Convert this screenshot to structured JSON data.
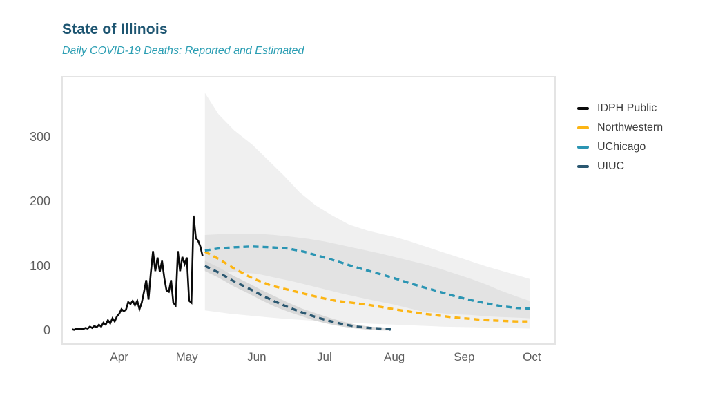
{
  "header": {
    "title": "State of Illinois",
    "subtitle": "Daily COVID-19 Deaths: Reported and Estimated",
    "title_color": "#1d5571",
    "subtitle_color": "#2b9eb3"
  },
  "legend": {
    "items": [
      {
        "label": "IDPH Public",
        "color": "#0a0a0a"
      },
      {
        "label": "Northwestern",
        "color": "#fcb514"
      },
      {
        "label": "UChicago",
        "color": "#2b95b3"
      },
      {
        "label": "UIUC",
        "color": "#2b5871"
      }
    ]
  },
  "chart_data": {
    "type": "line",
    "title": "State of Illinois",
    "subtitle": "Daily COVID-19 Deaths: Reported and Estimated",
    "xlabel": "",
    "ylabel": "",
    "x_unit": "days since 2020-03-01",
    "x_domain": [
      6,
      224
    ],
    "y_domain": [
      -20,
      392
    ],
    "grid": false,
    "legend_position": "right",
    "x_ticks": [
      {
        "label": "Apr",
        "day": 31
      },
      {
        "label": "May",
        "day": 61
      },
      {
        "label": "Jun",
        "day": 92
      },
      {
        "label": "Jul",
        "day": 122
      },
      {
        "label": "Aug",
        "day": 153
      },
      {
        "label": "Sep",
        "day": 184
      },
      {
        "label": "Oct",
        "day": 214
      }
    ],
    "y_ticks": [
      0,
      100,
      200,
      300
    ],
    "bands": [
      {
        "name": "forecast-outer-interval",
        "color": "#f0f0f0",
        "upper": [
          [
            69,
            368
          ],
          [
            75,
            335
          ],
          [
            82,
            310
          ],
          [
            90,
            288
          ],
          [
            97,
            264
          ],
          [
            104,
            240
          ],
          [
            111,
            214
          ],
          [
            118,
            194
          ],
          [
            125,
            179
          ],
          [
            133,
            164
          ],
          [
            141,
            155
          ],
          [
            148,
            149
          ],
          [
            153,
            145
          ],
          [
            160,
            138
          ],
          [
            166,
            131
          ],
          [
            173,
            123
          ],
          [
            180,
            115
          ],
          [
            187,
            107
          ],
          [
            194,
            99
          ],
          [
            201,
            92
          ],
          [
            207,
            86
          ],
          [
            213,
            80
          ]
        ],
        "lower": [
          [
            69,
            31
          ],
          [
            80,
            26
          ],
          [
            92,
            22
          ],
          [
            105,
            18
          ],
          [
            118,
            15
          ],
          [
            133,
            12
          ],
          [
            146,
            10
          ],
          [
            160,
            8
          ],
          [
            174,
            6
          ],
          [
            188,
            5
          ],
          [
            200,
            4
          ],
          [
            213,
            3
          ]
        ]
      },
      {
        "name": "uchicago-inner-interval",
        "color": "#e3e3e3",
        "upper": [
          [
            69,
            148
          ],
          [
            80,
            150
          ],
          [
            92,
            150
          ],
          [
            100,
            148
          ],
          [
            108,
            145
          ],
          [
            115,
            142
          ],
          [
            122,
            138
          ],
          [
            130,
            132
          ],
          [
            138,
            126
          ],
          [
            146,
            120
          ],
          [
            153,
            114
          ],
          [
            160,
            108
          ],
          [
            166,
            103
          ],
          [
            173,
            96
          ],
          [
            180,
            88
          ],
          [
            187,
            80
          ],
          [
            194,
            71
          ],
          [
            200,
            62
          ],
          [
            207,
            53
          ],
          [
            213,
            46
          ]
        ],
        "lower": [
          [
            69,
            93
          ],
          [
            80,
            91
          ],
          [
            92,
            88
          ],
          [
            100,
            82
          ],
          [
            108,
            76
          ],
          [
            115,
            70
          ],
          [
            122,
            64
          ],
          [
            130,
            57
          ],
          [
            138,
            51
          ],
          [
            146,
            45
          ],
          [
            153,
            40
          ],
          [
            160,
            34
          ],
          [
            166,
            29
          ],
          [
            173,
            27
          ],
          [
            180,
            25
          ],
          [
            187,
            24
          ],
          [
            194,
            22
          ],
          [
            200,
            21
          ],
          [
            207,
            20
          ],
          [
            213,
            19
          ]
        ]
      },
      {
        "name": "uiuc-interval",
        "color": "#d8d8d8",
        "upper": [
          [
            69,
            108
          ],
          [
            75,
            98
          ],
          [
            82,
            84
          ],
          [
            88,
            74
          ],
          [
            94,
            63
          ],
          [
            100,
            53
          ],
          [
            106,
            43
          ],
          [
            112,
            34
          ],
          [
            118,
            27
          ],
          [
            124,
            20
          ],
          [
            130,
            14
          ],
          [
            136,
            9
          ],
          [
            142,
            6
          ],
          [
            147,
            5
          ],
          [
            151,
            4
          ]
        ],
        "lower": [
          [
            69,
            92
          ],
          [
            75,
            82
          ],
          [
            82,
            68
          ],
          [
            88,
            58
          ],
          [
            94,
            47
          ],
          [
            100,
            37
          ],
          [
            106,
            29
          ],
          [
            112,
            22
          ],
          [
            118,
            15
          ],
          [
            124,
            10
          ],
          [
            130,
            6
          ],
          [
            136,
            3
          ],
          [
            142,
            1
          ],
          [
            147,
            0
          ],
          [
            151,
            0
          ]
        ]
      }
    ],
    "series": [
      {
        "name": "Northwestern",
        "color": "#fcb514",
        "style": "dashed",
        "width": 3.4,
        "points": [
          [
            69,
            122
          ],
          [
            75,
            111
          ],
          [
            82,
            96
          ],
          [
            90,
            81
          ],
          [
            98,
            70
          ],
          [
            106,
            63
          ],
          [
            113,
            57
          ],
          [
            120,
            51
          ],
          [
            127,
            46
          ],
          [
            134,
            43
          ],
          [
            141,
            40
          ],
          [
            148,
            36
          ],
          [
            153,
            33
          ],
          [
            160,
            29
          ],
          [
            166,
            26
          ],
          [
            173,
            23
          ],
          [
            180,
            20
          ],
          [
            187,
            18
          ],
          [
            194,
            16
          ],
          [
            200,
            15
          ],
          [
            207,
            14
          ],
          [
            213,
            14
          ]
        ]
      },
      {
        "name": "UChicago",
        "color": "#2b95b3",
        "style": "dashed",
        "width": 3.4,
        "points": [
          [
            69,
            124
          ],
          [
            75,
            127
          ],
          [
            82,
            129
          ],
          [
            90,
            130
          ],
          [
            98,
            129
          ],
          [
            106,
            127
          ],
          [
            113,
            122
          ],
          [
            120,
            115
          ],
          [
            127,
            108
          ],
          [
            134,
            100
          ],
          [
            141,
            93
          ],
          [
            148,
            86
          ],
          [
            153,
            81
          ],
          [
            160,
            73
          ],
          [
            166,
            67
          ],
          [
            173,
            60
          ],
          [
            180,
            53
          ],
          [
            187,
            47
          ],
          [
            194,
            42
          ],
          [
            200,
            38
          ],
          [
            207,
            35
          ],
          [
            213,
            34
          ]
        ]
      },
      {
        "name": "UIUC",
        "color": "#2b5871",
        "style": "dashed",
        "width": 3.4,
        "end_dot": true,
        "points": [
          [
            69,
            100
          ],
          [
            75,
            90
          ],
          [
            82,
            76
          ],
          [
            88,
            66
          ],
          [
            94,
            55
          ],
          [
            100,
            45
          ],
          [
            106,
            36
          ],
          [
            112,
            28
          ],
          [
            118,
            21
          ],
          [
            124,
            15
          ],
          [
            130,
            10
          ],
          [
            136,
            6
          ],
          [
            142,
            4
          ],
          [
            147,
            3
          ],
          [
            151,
            2
          ]
        ]
      },
      {
        "name": "IDPH Public",
        "color": "#0a0a0a",
        "style": "solid",
        "width": 2.6,
        "points": [
          [
            10,
            2
          ],
          [
            11,
            1
          ],
          [
            12,
            3
          ],
          [
            13,
            2
          ],
          [
            14,
            3
          ],
          [
            15,
            2
          ],
          [
            16,
            4
          ],
          [
            17,
            3
          ],
          [
            18,
            6
          ],
          [
            19,
            4
          ],
          [
            20,
            7
          ],
          [
            21,
            5
          ],
          [
            22,
            9
          ],
          [
            23,
            6
          ],
          [
            24,
            12
          ],
          [
            25,
            9
          ],
          [
            26,
            16
          ],
          [
            27,
            11
          ],
          [
            28,
            19
          ],
          [
            29,
            14
          ],
          [
            30,
            22
          ],
          [
            31,
            26
          ],
          [
            32,
            33
          ],
          [
            33,
            30
          ],
          [
            34,
            32
          ],
          [
            35,
            44
          ],
          [
            36,
            41
          ],
          [
            37,
            46
          ],
          [
            38,
            39
          ],
          [
            39,
            46
          ],
          [
            40,
            33
          ],
          [
            41,
            43
          ],
          [
            42,
            60
          ],
          [
            43,
            78
          ],
          [
            44,
            48
          ],
          [
            45,
            89
          ],
          [
            46,
            123
          ],
          [
            47,
            92
          ],
          [
            48,
            113
          ],
          [
            49,
            91
          ],
          [
            50,
            108
          ],
          [
            51,
            81
          ],
          [
            52,
            62
          ],
          [
            53,
            60
          ],
          [
            54,
            78
          ],
          [
            55,
            43
          ],
          [
            56,
            39
          ],
          [
            57,
            123
          ],
          [
            58,
            92
          ],
          [
            59,
            114
          ],
          [
            60,
            103
          ],
          [
            61,
            113
          ],
          [
            62,
            46
          ],
          [
            63,
            43
          ],
          [
            64,
            178
          ],
          [
            65,
            143
          ],
          [
            66,
            139
          ],
          [
            67,
            130
          ],
          [
            68,
            115
          ]
        ]
      }
    ]
  }
}
